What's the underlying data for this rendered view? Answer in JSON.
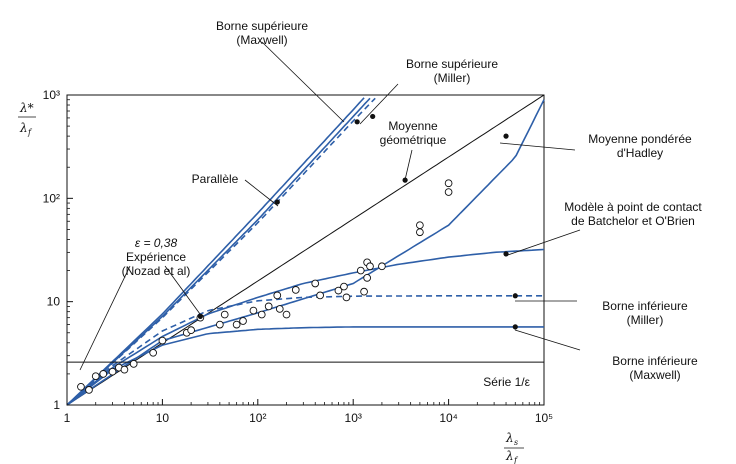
{
  "chart_data": {
    "type": "line",
    "x_scale": "log",
    "y_scale": "log",
    "xlim": [
      1,
      100000
    ],
    "ylim": [
      1,
      1000
    ],
    "grid": false,
    "x_ticks": [
      "1",
      "10",
      "10²",
      "10³",
      "10⁴",
      "10⁵"
    ],
    "y_ticks": [
      "1",
      "10",
      "10²",
      "10³"
    ],
    "ylabel": {
      "top": "λ*",
      "bottom": "λ",
      "sub": "f"
    },
    "xlabel": {
      "top": "λ",
      "top_sub": "s",
      "bottom": "λ",
      "bottom_sub": "f"
    },
    "series": [
      {
        "name": "Parallèle",
        "color": "#2e5fa8",
        "dash": false,
        "x": [
          1,
          10,
          100,
          1000,
          1500
        ],
        "y": [
          1,
          7.2,
          62,
          620,
          930
        ]
      },
      {
        "name": "Borne supérieure (Maxwell)",
        "color": "#2e5fa8",
        "dash": false,
        "x": [
          1,
          10,
          100,
          1000,
          1300
        ],
        "y": [
          1,
          7.6,
          72,
          720,
          940
        ]
      },
      {
        "name": "Borne supérieure (Miller)",
        "color": "#2e5fa8",
        "dash": true,
        "x": [
          1,
          10,
          100,
          1000,
          1700
        ],
        "y": [
          1,
          7.0,
          58,
          560,
          930
        ]
      },
      {
        "name": "Moyenne géométrique",
        "color": "#111111",
        "dash": false,
        "x": [
          1,
          100000
        ],
        "y": [
          1,
          1000
        ]
      },
      {
        "name": "Moyenne pondérée d'Hadley",
        "color": "#2e5fa8",
        "dash": false,
        "x": [
          1,
          10,
          100,
          1000,
          10000,
          50000,
          100000
        ],
        "y": [
          1,
          4.2,
          7.8,
          15,
          55,
          250,
          900
        ]
      },
      {
        "name": "Modèle à point de contact de Batchelor et O'Brien",
        "color": "#2e5fa8",
        "dash": false,
        "x": [
          1,
          3,
          10,
          30,
          100,
          300,
          1000,
          3000,
          10000,
          30000,
          100000
        ],
        "y": [
          1,
          2.3,
          4.6,
          7.6,
          11,
          15,
          19,
          23,
          27,
          30,
          32
        ]
      },
      {
        "name": "Borne inférieure (Miller)",
        "color": "#2e5fa8",
        "dash": true,
        "x": [
          1,
          3,
          10,
          30,
          100,
          300,
          1000,
          10000,
          100000
        ],
        "y": [
          1,
          2.4,
          5.2,
          8.2,
          10.2,
          11.0,
          11.3,
          11.4,
          11.4
        ]
      },
      {
        "name": "Borne inférieure (Maxwell)",
        "color": "#2e5fa8",
        "dash": false,
        "x": [
          1,
          3,
          10,
          30,
          100,
          300,
          1000,
          10000,
          100000
        ],
        "y": [
          1,
          2.2,
          3.8,
          4.9,
          5.4,
          5.6,
          5.7,
          5.7,
          5.7
        ]
      },
      {
        "name": "Série 1/ε",
        "color": "#111111",
        "dash": false,
        "x": [
          1,
          100000
        ],
        "y": [
          2.6,
          2.6
        ]
      }
    ],
    "experiment_points": {
      "x": [
        1.4,
        1.7,
        2.0,
        2.4,
        3.0,
        3.5,
        4.0,
        5.0,
        8.0,
        10,
        18,
        20,
        25,
        40,
        45,
        60,
        70,
        90,
        110,
        130,
        160,
        170,
        200,
        250,
        400,
        450,
        700,
        800,
        850,
        1200,
        1300,
        1400,
        1400,
        1500,
        2000,
        5000,
        5000,
        10000,
        10000
      ],
      "y": [
        1.5,
        1.4,
        1.9,
        2.0,
        2.1,
        2.3,
        2.2,
        2.5,
        3.2,
        4.2,
        5.0,
        5.3,
        7.0,
        6.0,
        7.5,
        6.0,
        6.5,
        8.2,
        7.5,
        9.0,
        11.5,
        8.5,
        7.5,
        13,
        15,
        11.5,
        12.8,
        14,
        11,
        20,
        12.5,
        17,
        24,
        22,
        22,
        47,
        55,
        115,
        140
      ]
    },
    "anchor_points_x": [
      25,
      160,
      1100,
      1600,
      3500,
      40000,
      40000,
      50000,
      50000
    ],
    "anchor_points_y": [
      7.2,
      92,
      550,
      620,
      150,
      400,
      29,
      11.4,
      5.7
    ],
    "annotations": [
      {
        "label": "Borne supérieure",
        "label2": "(Maxwell)"
      },
      {
        "label": "Borne supérieure",
        "label2": "(Miller)"
      },
      {
        "label": "Moyenne",
        "label2": "géométrique"
      },
      {
        "label": "Parallèle",
        "label2": ""
      },
      {
        "label": "Moyenne pondérée",
        "label2": "d'Hadley"
      },
      {
        "label": "Modèle à point de contact",
        "label2": "de Batchelor et O'Brien"
      },
      {
        "label": "ε = 0,38",
        "label2": "Expérience",
        "label3": "(Nozad et al)"
      },
      {
        "label": "Borne inférieure",
        "label2": "(Miller)"
      },
      {
        "label": "Borne inférieure",
        "label2": "(Maxwell)"
      },
      {
        "label": "Série 1/ε",
        "label2": ""
      }
    ]
  }
}
